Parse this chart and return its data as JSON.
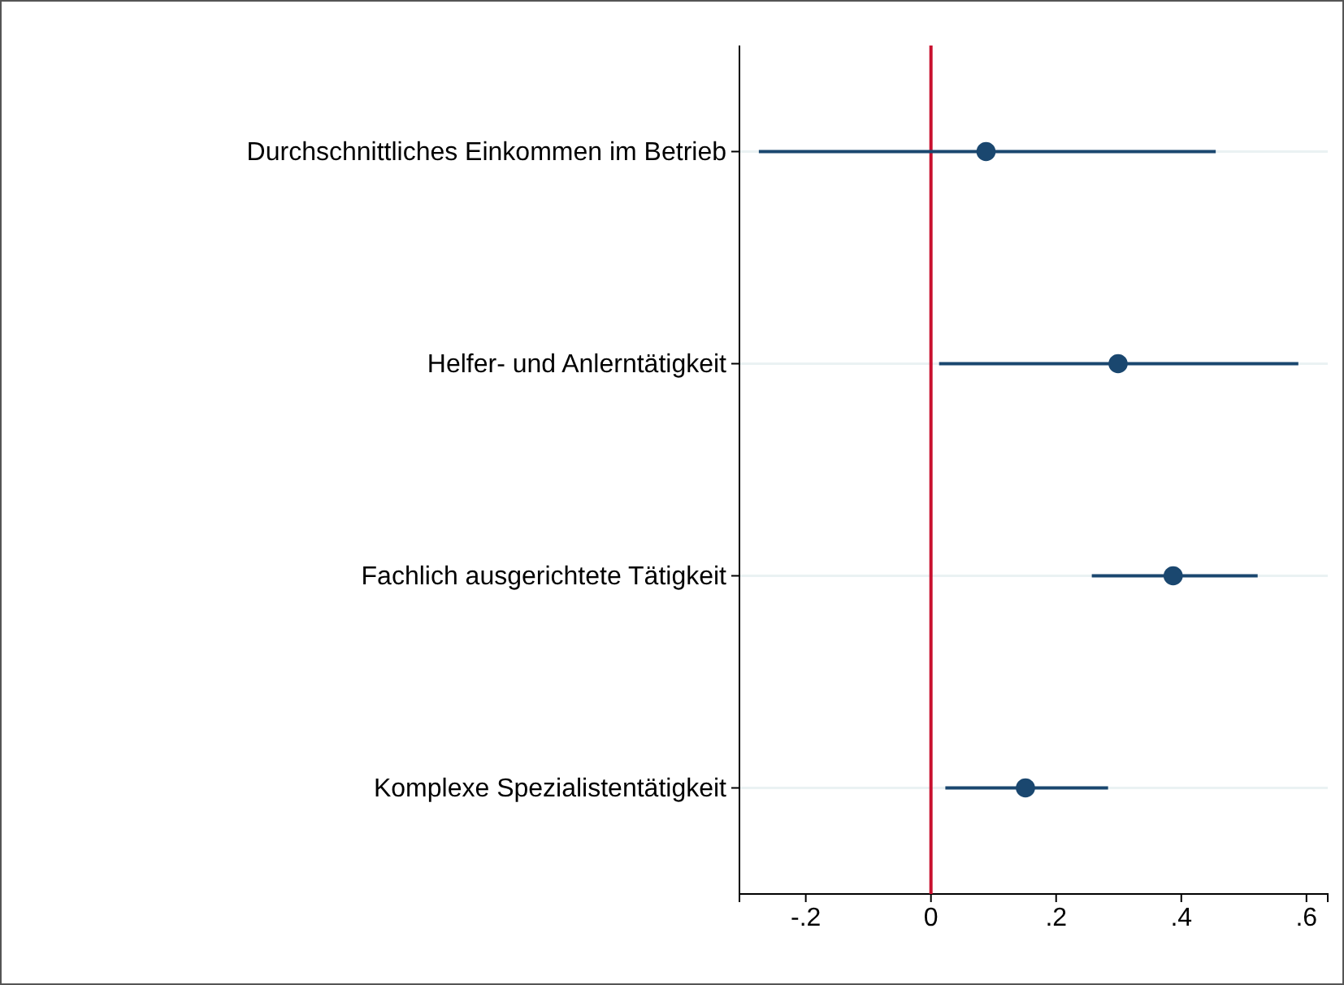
{
  "chart_data": {
    "type": "scatter",
    "orientation": "horizontal",
    "categories": [
      "Durchschnittliches Einkommen im Betrieb",
      "Helfer- und Anlerntätigkeit",
      "Fachlich ausgerichtete Tätigkeit",
      "Komplexe Spezialistentätigkeit"
    ],
    "series": [
      {
        "color": "#1a476f",
        "values": [
          0.088,
          0.299,
          0.387,
          0.151
        ],
        "errors": [
          [
            -0.275,
            0.455
          ],
          [
            0.013,
            0.587
          ],
          [
            0.257,
            0.522
          ],
          [
            0.023,
            0.283
          ]
        ]
      }
    ],
    "xlim": [
      -0.306,
      0.634
    ],
    "xticks": [
      {
        "value": -0.2,
        "label": "-.2"
      },
      0,
      {
        "value": 0.2,
        "label": ".2"
      },
      {
        "value": 0.4,
        "label": ".4"
      },
      {
        "value": 0.6,
        "label": ".6"
      }
    ],
    "ref_lines": [
      {
        "axis": "x",
        "value": 0,
        "color": "#c8102e"
      }
    ],
    "grid": "y",
    "marker": "circle"
  }
}
